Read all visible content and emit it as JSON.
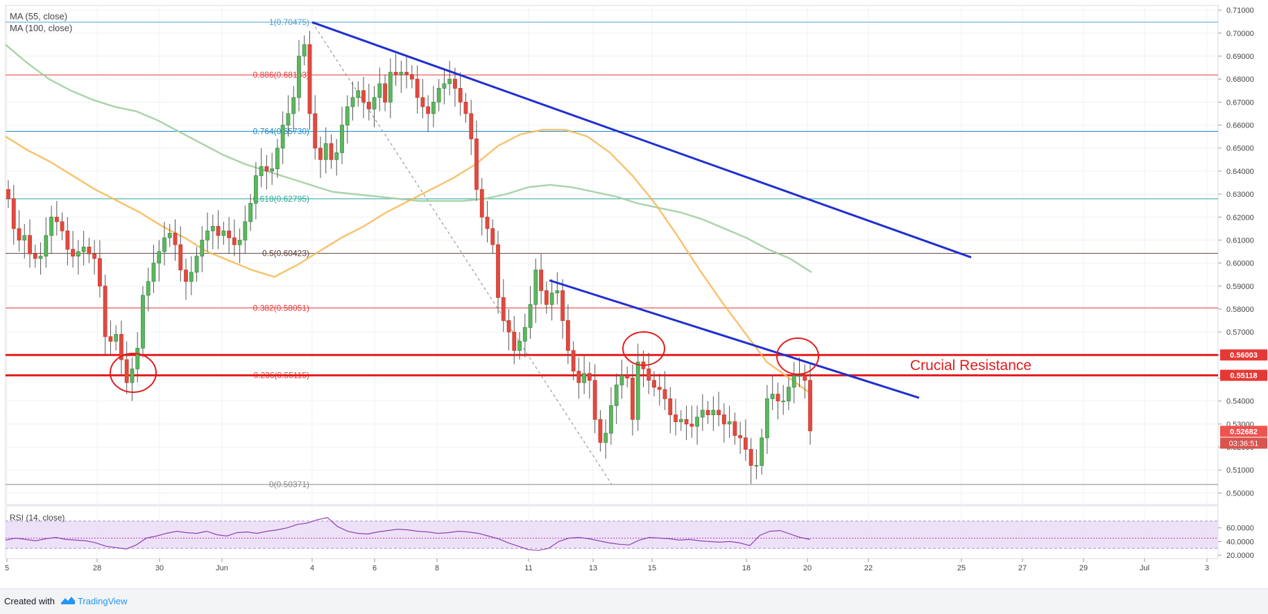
{
  "chart_data": {
    "type": "candlestick",
    "indicators": [
      "MA (55, close)",
      "MA (100, close)"
    ],
    "rsi_label": "RSI (14, close)",
    "price_axis": [
      "0.71000",
      "0.70000",
      "0.69000",
      "0.68000",
      "0.67000",
      "0.66000",
      "0.65000",
      "0.64000",
      "0.63000",
      "0.62000",
      "0.61000",
      "0.60000",
      "0.59000",
      "0.58000",
      "0.57000",
      "0.56000",
      "0.55000",
      "0.54000",
      "0.53000",
      "0.52000",
      "0.51000",
      "0.50000"
    ],
    "rsi_axis": [
      "60.0000",
      "40.0000",
      "20.0000"
    ],
    "x_axis": [
      "5",
      "28",
      "30",
      "Jun",
      "4",
      "6",
      "8",
      "11",
      "13",
      "15",
      "18",
      "20",
      "22",
      "25",
      "27",
      "29",
      "Jul",
      "3"
    ],
    "ylim": [
      0.495,
      0.712
    ],
    "fib_levels": [
      {
        "label": "1(0.70475)",
        "value": 0.70475,
        "color": "#4a9fd5"
      },
      {
        "label": "0.886(0.68183)",
        "value": 0.68183,
        "color": "#e53935"
      },
      {
        "label": "0.764(0.65730)",
        "value": 0.6573,
        "color": "#1e88c7"
      },
      {
        "label": "0.618(0.62795)",
        "value": 0.62795,
        "color": "#26a69a"
      },
      {
        "label": "0.5(0.60423)",
        "value": 0.60423,
        "color": "#5d4037"
      },
      {
        "label": "0.382(0.58051)",
        "value": 0.58051,
        "color": "#e53935"
      },
      {
        "label": "0.236(0.55115)",
        "value": 0.55115,
        "color": "#e53935"
      },
      {
        "label": "0(0.50371)",
        "value": 0.50371,
        "color": "#888888"
      }
    ],
    "resistance_lines": [
      0.56003,
      0.55118
    ],
    "price_tags": [
      {
        "label": "0.56003",
        "value": 0.56003,
        "color": "#e53935"
      },
      {
        "label": "0.55118",
        "value": 0.55118,
        "color": "#e53935"
      },
      {
        "label": "0.52682",
        "value": 0.52682,
        "color": "#ef5350"
      }
    ],
    "countdown": "03:36:51",
    "annotation": "Crucial Resistance",
    "closes": [
      0.628,
      0.615,
      0.61,
      0.612,
      0.604,
      0.602,
      0.603,
      0.612,
      0.62,
      0.618,
      0.614,
      0.606,
      0.603,
      0.605,
      0.607,
      0.604,
      0.602,
      0.59,
      0.568,
      0.566,
      0.569,
      0.558,
      0.548,
      0.554,
      0.563,
      0.586,
      0.592,
      0.6,
      0.605,
      0.611,
      0.613,
      0.608,
      0.597,
      0.592,
      0.596,
      0.603,
      0.61,
      0.614,
      0.616,
      0.612,
      0.614,
      0.611,
      0.608,
      0.61,
      0.618,
      0.626,
      0.638,
      0.642,
      0.64,
      0.641,
      0.65,
      0.66,
      0.665,
      0.672,
      0.69,
      0.695,
      0.665,
      0.65,
      0.645,
      0.652,
      0.645,
      0.648,
      0.66,
      0.668,
      0.672,
      0.675,
      0.67,
      0.667,
      0.672,
      0.678,
      0.67,
      0.683,
      0.682,
      0.683,
      0.682,
      0.68,
      0.672,
      0.668,
      0.665,
      0.67,
      0.676,
      0.678,
      0.68,
      0.676,
      0.67,
      0.665,
      0.654,
      0.632,
      0.62,
      0.615,
      0.608,
      0.585,
      0.575,
      0.57,
      0.562,
      0.566,
      0.572,
      0.582,
      0.597,
      0.588,
      0.582,
      0.587,
      0.588,
      0.575,
      0.562,
      0.553,
      0.548,
      0.552,
      0.549,
      0.532,
      0.522,
      0.526,
      0.538,
      0.547,
      0.551,
      0.55,
      0.532,
      0.557,
      0.554,
      0.549,
      0.546,
      0.545,
      0.541,
      0.534,
      0.531,
      0.532,
      0.53,
      0.529,
      0.533,
      0.536,
      0.534,
      0.536,
      0.534,
      0.53,
      0.531,
      0.525,
      0.524,
      0.519,
      0.512,
      0.512,
      0.524,
      0.541,
      0.543,
      0.54,
      0.54,
      0.546,
      0.551,
      0.551,
      0.549,
      0.527
    ],
    "ma55": [
      0.655,
      0.649,
      0.644,
      0.638,
      0.632,
      0.627,
      0.622,
      0.616,
      0.611,
      0.605,
      0.601,
      0.597,
      0.594,
      0.599,
      0.605,
      0.611,
      0.616,
      0.622,
      0.627,
      0.632,
      0.637,
      0.643,
      0.651,
      0.656,
      0.658,
      0.658,
      0.655,
      0.648,
      0.638,
      0.626,
      0.612,
      0.597,
      0.583,
      0.57,
      0.557,
      0.55,
      0.543
    ],
    "ma100": [
      0.695,
      0.687,
      0.68,
      0.675,
      0.671,
      0.668,
      0.666,
      0.662,
      0.657,
      0.652,
      0.647,
      0.643,
      0.64,
      0.637,
      0.634,
      0.631,
      0.63,
      0.629,
      0.628,
      0.627,
      0.627,
      0.627,
      0.628,
      0.63,
      0.633,
      0.634,
      0.633,
      0.631,
      0.629,
      0.626,
      0.624,
      0.622,
      0.619,
      0.615,
      0.611,
      0.606,
      0.602,
      0.596
    ],
    "rsi": [
      42,
      45,
      43,
      41,
      44,
      46,
      43,
      42,
      41,
      38,
      33,
      31,
      29,
      35,
      45,
      48,
      52,
      55,
      53,
      52,
      55,
      50,
      48,
      53,
      54,
      52,
      55,
      57,
      60,
      65,
      67,
      72,
      75,
      62,
      55,
      52,
      51,
      54,
      56,
      58,
      57,
      55,
      54,
      52,
      53,
      55,
      54,
      52,
      48,
      44,
      38,
      33,
      28,
      27,
      30,
      40,
      45,
      46,
      44,
      41,
      38,
      36,
      35,
      42,
      46,
      45,
      44,
      42,
      43,
      41,
      40,
      39,
      40,
      38,
      34,
      49,
      55,
      56,
      51,
      46,
      43
    ]
  },
  "footer": {
    "created_with": "Created with",
    "brand": "TradingView"
  }
}
